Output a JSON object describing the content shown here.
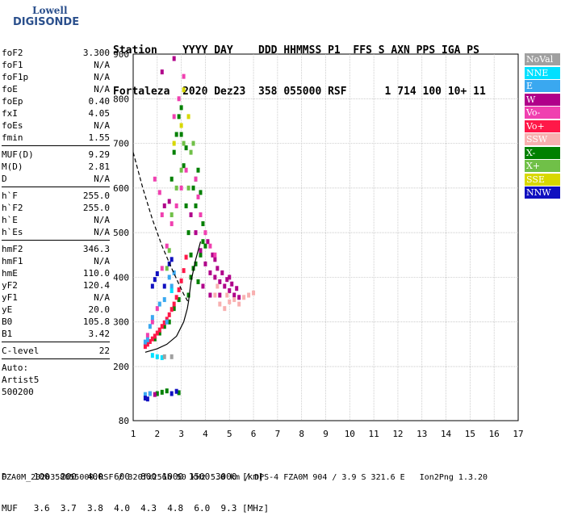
{
  "logo": {
    "line1": "Lowell",
    "line2": "DIGISONDE"
  },
  "header": {
    "labels": "Station    YYYY DAY    DDD HHMMSS P1  FFS S AXN PPS IGA PS",
    "values": "Fortaleza  2020 Dez23  358 055000 RSF      1 714 100 10+ 11"
  },
  "parameters": {
    "group1": [
      {
        "name": "foF2",
        "value": "3.300"
      },
      {
        "name": "foF1",
        "value": "N/A"
      },
      {
        "name": "foF1p",
        "value": "N/A"
      },
      {
        "name": "foE",
        "value": "N/A"
      },
      {
        "name": "foEp",
        "value": "0.40"
      },
      {
        "name": "fxI",
        "value": "4.05"
      },
      {
        "name": "foEs",
        "value": "N/A"
      },
      {
        "name": "fmin",
        "value": "1.55"
      }
    ],
    "group2": [
      {
        "name": "MUF(D)",
        "value": "9.29"
      },
      {
        "name": "M(D)",
        "value": "2.81"
      },
      {
        "name": "D",
        "value": "N/A"
      }
    ],
    "group3": [
      {
        "name": "h`F",
        "value": "255.0"
      },
      {
        "name": "h`F2",
        "value": "255.0"
      },
      {
        "name": "h`E",
        "value": "N/A"
      },
      {
        "name": "h`Es",
        "value": "N/A"
      }
    ],
    "group4": [
      {
        "name": "hmF2",
        "value": "346.3"
      },
      {
        "name": "hmF1",
        "value": "N/A"
      },
      {
        "name": "hmE",
        "value": "110.0"
      },
      {
        "name": "yF2",
        "value": "120.4"
      },
      {
        "name": "yF1",
        "value": "N/A"
      },
      {
        "name": "yE",
        "value": "20.0"
      },
      {
        "name": "B0",
        "value": "105.8"
      },
      {
        "name": "B1",
        "value": "3.42"
      }
    ],
    "group5": [
      {
        "name": "C-level",
        "value": "22"
      }
    ],
    "auto": [
      "Auto:",
      "Artist5",
      "500200"
    ]
  },
  "legend": [
    {
      "label": "NoVal",
      "color": "#a0a0a0"
    },
    {
      "label": "NNE",
      "color": "#00e0ff"
    },
    {
      "label": "E",
      "color": "#3aa8f0"
    },
    {
      "label": "W",
      "color": "#b0008a"
    },
    {
      "label": "Vo-",
      "color": "#f040b0"
    },
    {
      "label": "Vo+",
      "color": "#ff1848"
    },
    {
      "label": "SSW",
      "color": "#f8b0b0"
    },
    {
      "label": "X-",
      "color": "#008000"
    },
    {
      "label": "X+",
      "color": "#70c048"
    },
    {
      "label": "SSE",
      "color": "#d8d800"
    },
    {
      "label": "NNW",
      "color": "#1010c0"
    }
  ],
  "muf_table": {
    "row1": "D     100  200  400  600  800 1000 1500 3000 [km]",
    "row2": "MUF   3.6  3.7  3.8  4.0  4.3  4.8  6.0  9.3 [MHz]"
  },
  "footer": "FZA0M_2020358055000.RSF / 320fx256h 50 kHz 5.0 km / DPS-4 FZA0M 904 / 3.9 S 321.6 E   Ion2Png 1.3.20",
  "chart_data": {
    "type": "scatter",
    "x_ticks": [
      1,
      2,
      3,
      4,
      5,
      6,
      7,
      8,
      9,
      10,
      11,
      12,
      13,
      14,
      15,
      16,
      17
    ],
    "y_ticks": [
      80,
      200,
      300,
      400,
      500,
      600,
      700,
      800,
      900
    ],
    "xlim": [
      1,
      17
    ],
    "ylim": [
      80,
      900
    ],
    "grid": true,
    "series": [
      {
        "name": "X-",
        "color": "#008000",
        "points": [
          [
            2.6,
            620
          ],
          [
            2.7,
            680
          ],
          [
            2.8,
            720
          ],
          [
            2.9,
            760
          ],
          [
            3.0,
            780
          ],
          [
            3.1,
            650
          ],
          [
            3.2,
            560
          ],
          [
            3.3,
            500
          ],
          [
            3.4,
            450
          ],
          [
            3.5,
            420
          ],
          [
            3.6,
            560
          ],
          [
            3.7,
            640
          ],
          [
            3.8,
            590
          ],
          [
            3.9,
            520
          ],
          [
            4.0,
            470
          ],
          [
            3.6,
            430
          ],
          [
            3.7,
            390
          ],
          [
            3.4,
            400
          ],
          [
            3.3,
            360
          ],
          [
            2.9,
            350
          ],
          [
            2.7,
            330
          ],
          [
            2.5,
            300
          ],
          [
            2.3,
            290
          ],
          [
            2.1,
            275
          ],
          [
            1.9,
            262
          ],
          [
            3.0,
            720
          ],
          [
            3.2,
            690
          ],
          [
            3.8,
            450
          ],
          [
            3.9,
            480
          ],
          [
            3.5,
            600
          ],
          [
            3.6,
            620
          ],
          [
            2.0,
            140
          ],
          [
            2.2,
            143
          ],
          [
            2.4,
            146
          ],
          [
            2.9,
            142
          ]
        ]
      },
      {
        "name": "W",
        "color": "#b0008a",
        "points": [
          [
            3.4,
            540
          ],
          [
            3.6,
            500
          ],
          [
            3.8,
            460
          ],
          [
            4.0,
            430
          ],
          [
            4.2,
            410
          ],
          [
            4.4,
            400
          ],
          [
            4.6,
            390
          ],
          [
            4.8,
            380
          ],
          [
            5.0,
            370
          ],
          [
            5.2,
            360
          ],
          [
            5.4,
            355
          ],
          [
            4.1,
            480
          ],
          [
            4.3,
            450
          ],
          [
            4.5,
            420
          ],
          [
            4.7,
            410
          ],
          [
            4.9,
            395
          ],
          [
            5.1,
            385
          ],
          [
            5.3,
            375
          ],
          [
            3.9,
            380
          ],
          [
            4.2,
            360
          ],
          [
            4.6,
            360
          ],
          [
            5.0,
            400
          ],
          [
            4.4,
            440
          ],
          [
            2.2,
            860
          ],
          [
            2.7,
            890
          ],
          [
            2.5,
            570
          ],
          [
            2.3,
            560
          ],
          [
            1.7,
            140
          ],
          [
            1.9,
            138
          ]
        ]
      },
      {
        "name": "Vo-",
        "color": "#f040b0",
        "points": [
          [
            3.6,
            620
          ],
          [
            3.7,
            580
          ],
          [
            3.8,
            540
          ],
          [
            4.0,
            500
          ],
          [
            4.2,
            470
          ],
          [
            4.4,
            450
          ],
          [
            3.2,
            640
          ],
          [
            3.0,
            600
          ],
          [
            2.8,
            560
          ],
          [
            2.6,
            520
          ],
          [
            2.4,
            470
          ],
          [
            2.2,
            420
          ],
          [
            2.0,
            330
          ],
          [
            1.8,
            300
          ],
          [
            1.6,
            270
          ],
          [
            2.7,
            760
          ],
          [
            2.9,
            800
          ],
          [
            3.1,
            850
          ],
          [
            1.9,
            620
          ],
          [
            2.1,
            590
          ],
          [
            2.2,
            540
          ]
        ]
      },
      {
        "name": "Vo+",
        "color": "#ff1848",
        "points": [
          [
            1.5,
            245
          ],
          [
            1.6,
            250
          ],
          [
            1.7,
            256
          ],
          [
            1.8,
            262
          ],
          [
            1.9,
            268
          ],
          [
            2.0,
            275
          ],
          [
            2.1,
            282
          ],
          [
            2.2,
            290
          ],
          [
            2.3,
            298
          ],
          [
            2.4,
            306
          ],
          [
            2.5,
            316
          ],
          [
            2.6,
            328
          ],
          [
            2.7,
            340
          ],
          [
            2.8,
            355
          ],
          [
            2.9,
            372
          ],
          [
            3.0,
            392
          ],
          [
            3.1,
            415
          ],
          [
            3.2,
            445
          ]
        ]
      },
      {
        "name": "SSW",
        "color": "#f8b0b0",
        "points": [
          [
            4.4,
            360
          ],
          [
            4.6,
            340
          ],
          [
            4.8,
            330
          ],
          [
            5.0,
            345
          ],
          [
            5.2,
            350
          ],
          [
            5.4,
            340
          ],
          [
            5.6,
            355
          ],
          [
            5.8,
            360
          ],
          [
            6.0,
            365
          ],
          [
            4.5,
            380
          ],
          [
            4.9,
            360
          ]
        ]
      },
      {
        "name": "X+",
        "color": "#70c048",
        "points": [
          [
            2.8,
            600
          ],
          [
            3.0,
            640
          ],
          [
            3.1,
            700
          ],
          [
            2.6,
            540
          ],
          [
            3.4,
            680
          ],
          [
            3.5,
            700
          ],
          [
            2.5,
            460
          ],
          [
            2.4,
            420
          ],
          [
            3.3,
            600
          ]
        ]
      },
      {
        "name": "SSE",
        "color": "#d8d800",
        "points": [
          [
            2.7,
            700
          ],
          [
            3.0,
            740
          ],
          [
            3.3,
            760
          ],
          [
            3.1,
            820
          ]
        ]
      },
      {
        "name": "E",
        "color": "#3aa8f0",
        "points": [
          [
            1.8,
            310
          ],
          [
            1.7,
            290
          ],
          [
            2.5,
            400
          ],
          [
            2.7,
            410
          ],
          [
            2.6,
            380
          ],
          [
            2.3,
            350
          ],
          [
            2.1,
            340
          ],
          [
            1.6,
            260
          ],
          [
            1.5,
            255
          ],
          [
            2.4,
            300
          ],
          [
            1.7,
            140
          ],
          [
            1.5,
            138
          ]
        ]
      },
      {
        "name": "NNE",
        "color": "#00e0ff",
        "points": [
          [
            2.6,
            370
          ],
          [
            1.8,
            225
          ],
          [
            2.0,
            222
          ],
          [
            2.2,
            220
          ]
        ]
      },
      {
        "name": "NNW",
        "color": "#1010c0",
        "points": [
          [
            1.8,
            380
          ],
          [
            1.9,
            395
          ],
          [
            2.0,
            408
          ],
          [
            2.3,
            380
          ],
          [
            2.5,
            430
          ],
          [
            2.6,
            440
          ],
          [
            1.5,
            130
          ],
          [
            1.6,
            128
          ],
          [
            2.6,
            140
          ],
          [
            2.8,
            145
          ]
        ]
      },
      {
        "name": "NoVal",
        "color": "#a0a0a0",
        "points": [
          [
            2.3,
            222
          ],
          [
            2.6,
            222
          ]
        ]
      }
    ],
    "profile_curve": [
      [
        1.5,
        232
      ],
      [
        2.0,
        240
      ],
      [
        2.4,
        250
      ],
      [
        2.8,
        268
      ],
      [
        3.1,
        300
      ],
      [
        3.25,
        330
      ],
      [
        3.3,
        346
      ],
      [
        3.4,
        390
      ],
      [
        3.6,
        440
      ],
      [
        3.8,
        480
      ]
    ],
    "virtual_curve_dashed": [
      [
        1.0,
        680
      ],
      [
        1.4,
        600
      ],
      [
        1.8,
        530
      ],
      [
        2.2,
        470
      ],
      [
        2.6,
        420
      ],
      [
        2.9,
        385
      ],
      [
        3.1,
        362
      ],
      [
        3.25,
        348
      ],
      [
        3.3,
        346
      ]
    ]
  }
}
